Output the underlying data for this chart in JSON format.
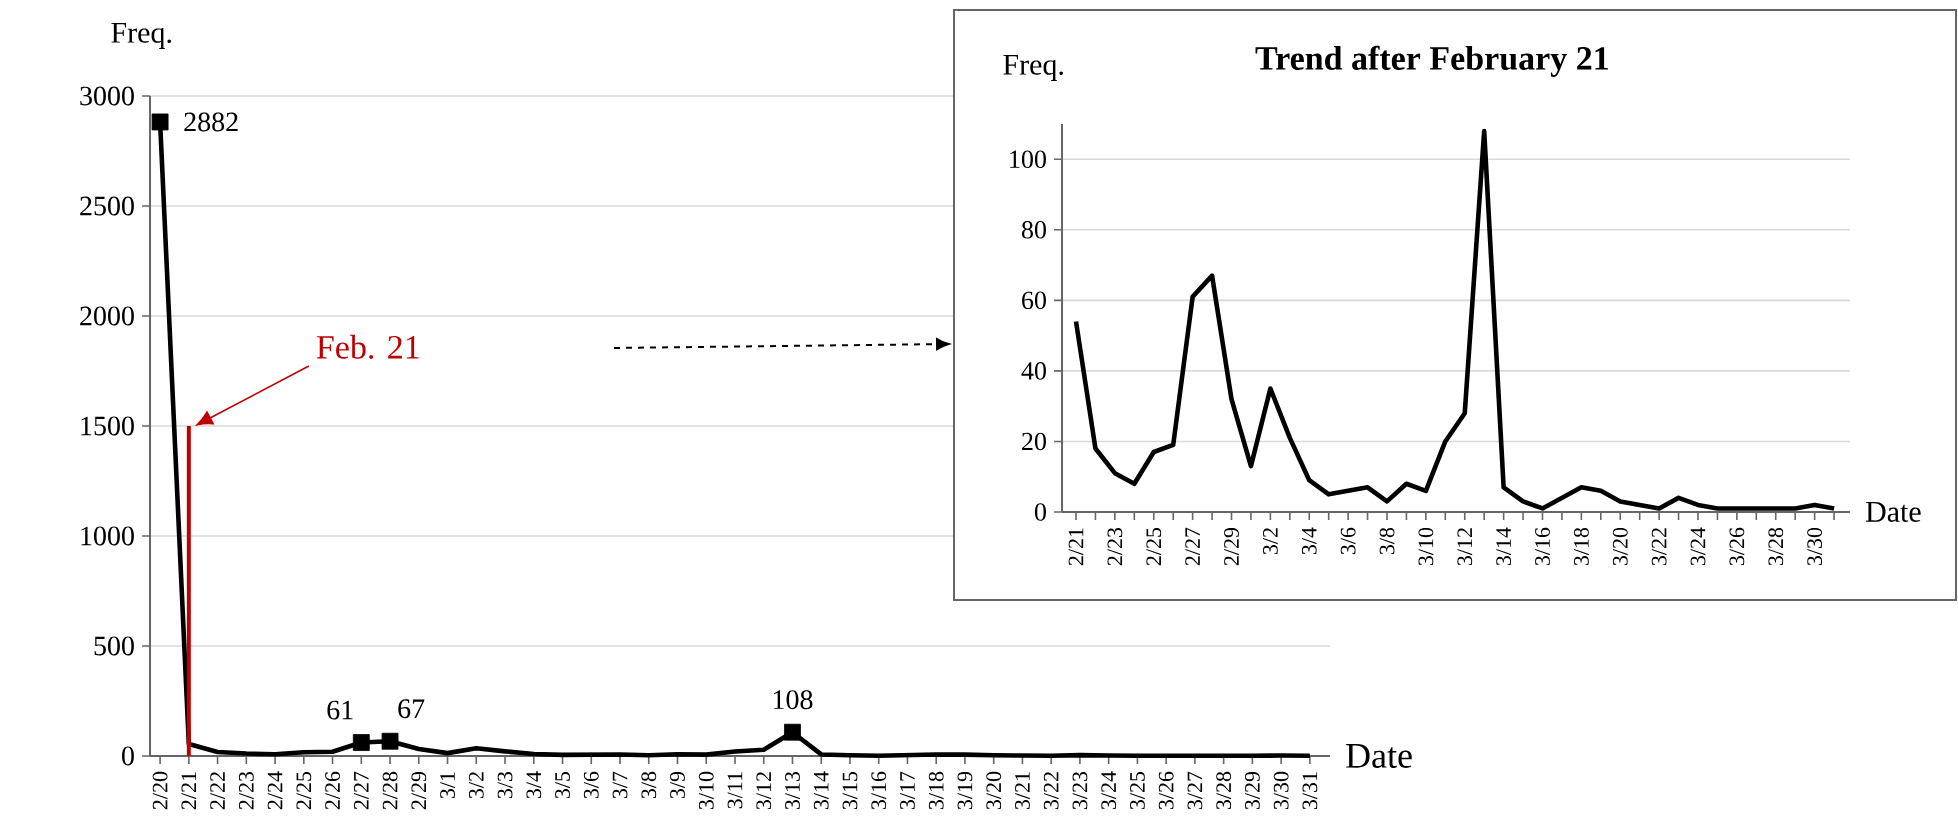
{
  "chart_data": [
    {
      "type": "line",
      "xlabel": "Date",
      "ylabel": "Freq.",
      "ylim": [
        0,
        3000
      ],
      "yticks": [
        0,
        500,
        1000,
        1500,
        2000,
        2500,
        3000
      ],
      "grid": "y",
      "categories": [
        "2/20",
        "2/21",
        "2/22",
        "2/23",
        "2/24",
        "2/25",
        "2/26",
        "2/27",
        "2/28",
        "2/29",
        "3/1",
        "3/2",
        "3/3",
        "3/4",
        "3/5",
        "3/6",
        "3/7",
        "3/8",
        "3/9",
        "3/10",
        "3/11",
        "3/12",
        "3/13",
        "3/14",
        "3/15",
        "3/16",
        "3/17",
        "3/18",
        "3/19",
        "3/20",
        "3/21",
        "3/22",
        "3/23",
        "3/24",
        "3/25",
        "3/26",
        "3/27",
        "3/28",
        "3/29",
        "3/30",
        "3/31"
      ],
      "series": [
        {
          "color": "#000000",
          "values": [
            2882,
            54,
            18,
            11,
            8,
            17,
            19,
            61,
            67,
            32,
            13,
            35,
            21,
            9,
            5,
            6,
            7,
            3,
            8,
            6,
            20,
            28,
            108,
            7,
            3,
            1,
            4,
            7,
            6,
            3,
            2,
            1,
            4,
            2,
            1,
            1,
            1,
            1,
            1,
            2,
            1
          ]
        },
        {
          "type": "scatter",
          "marker": "square",
          "color": "#000000",
          "x": [
            "2/20",
            "2/27",
            "2/28",
            "3/13"
          ],
          "values": [
            2882,
            61,
            67,
            108
          ],
          "value_labels": [
            "2882",
            "61",
            "67",
            "108"
          ]
        }
      ],
      "ref_lines": [
        {
          "axis": "x",
          "value": "2/21",
          "label": "Feb. 21",
          "color": "#c00000"
        }
      ]
    },
    {
      "type": "line",
      "title": "Trend after February 21",
      "xlabel": "Date",
      "ylabel": "Freq.",
      "ylim": [
        0,
        110
      ],
      "yticks": [
        0,
        20,
        40,
        60,
        80,
        100
      ],
      "grid": "y",
      "categories": [
        "2/21",
        null,
        "2/23",
        null,
        "2/25",
        null,
        "2/27",
        null,
        "2/29",
        null,
        "3/2",
        null,
        "3/4",
        null,
        "3/6",
        null,
        "3/8",
        null,
        "3/10",
        null,
        "3/12",
        null,
        "3/14",
        null,
        "3/16",
        null,
        "3/18",
        null,
        "3/20",
        null,
        "3/22",
        null,
        "3/24",
        null,
        "3/26",
        null,
        "3/28",
        null,
        "3/30",
        null
      ],
      "series": [
        {
          "color": "#000000",
          "values": [
            54,
            18,
            11,
            8,
            17,
            19,
            61,
            67,
            32,
            13,
            35,
            21,
            9,
            5,
            6,
            7,
            3,
            8,
            6,
            20,
            28,
            108,
            7,
            3,
            1,
            4,
            7,
            6,
            3,
            2,
            1,
            4,
            2,
            1,
            1,
            1,
            1,
            1,
            2,
            1
          ]
        }
      ]
    }
  ]
}
